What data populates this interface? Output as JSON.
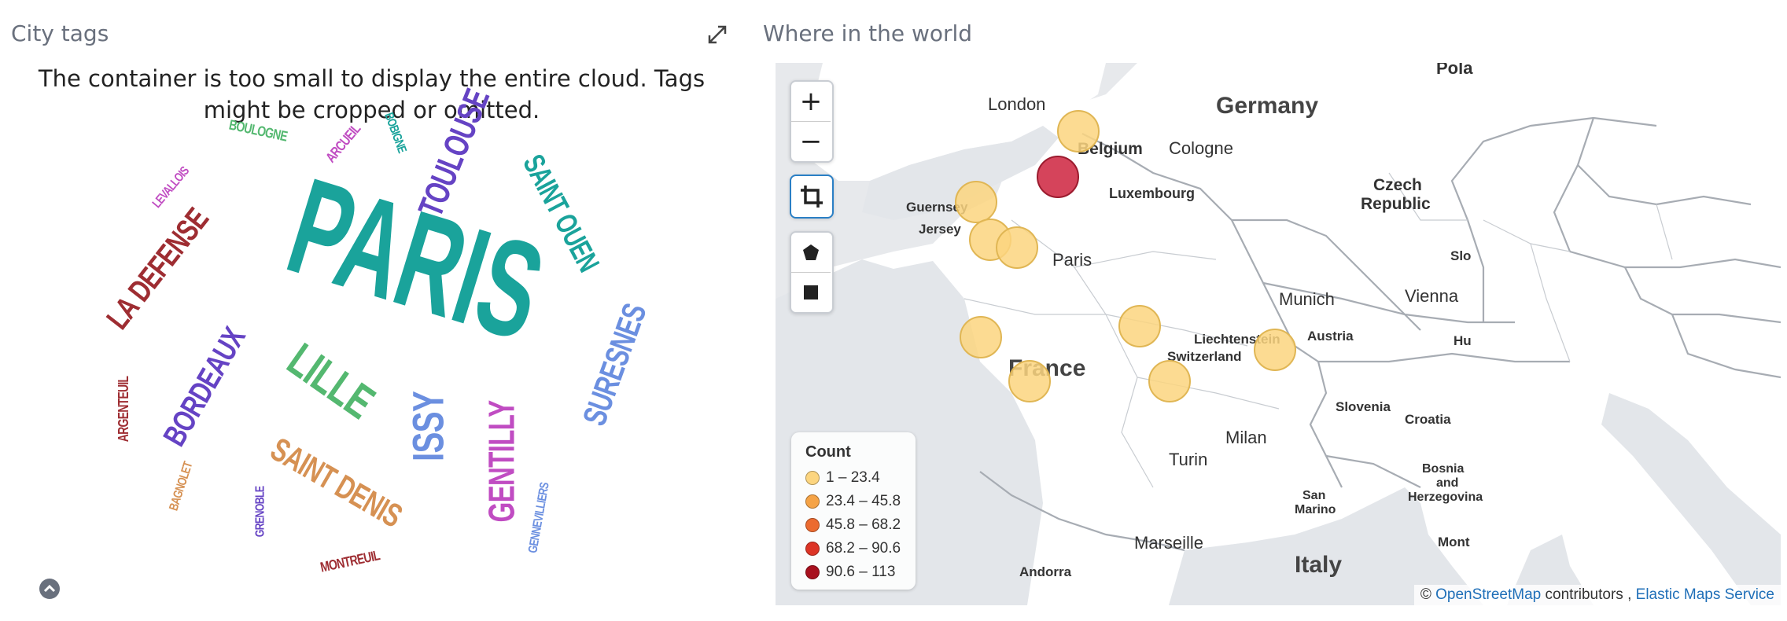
{
  "left_panel": {
    "title": "City tags",
    "warning": "The container is too small to display the entire cloud. Tags might be cropped or omitted.",
    "tags": [
      {
        "text": "PARIS",
        "color": "#1aa39b"
      },
      {
        "text": "LA DEFENSE",
        "color": "#9e2d32"
      },
      {
        "text": "TOULOUSE",
        "color": "#6543c4"
      },
      {
        "text": "SAINT OUEN",
        "color": "#1aa39b"
      },
      {
        "text": "SURESNES",
        "color": "#6b8fe0"
      },
      {
        "text": "BORDEAUX",
        "color": "#6543c4"
      },
      {
        "text": "LILLE",
        "color": "#54b870"
      },
      {
        "text": "ISSY",
        "color": "#6b8fe0"
      },
      {
        "text": "GENTILLY",
        "color": "#c04cc2"
      },
      {
        "text": "SAINT DENIS",
        "color": "#d69153"
      },
      {
        "text": "BOULOGNE",
        "color": "#54b870"
      },
      {
        "text": "ARCUEIL",
        "color": "#c04cc2"
      },
      {
        "text": "BOBIGNE",
        "color": "#1aa39b"
      },
      {
        "text": "LEVALLOIS",
        "color": "#c04cc2"
      },
      {
        "text": "ARGENTEUIL",
        "color": "#9e2d32"
      },
      {
        "text": "BAGNOLET",
        "color": "#d69153"
      },
      {
        "text": "GRENOBLE",
        "color": "#6543c4"
      },
      {
        "text": "MONTREUIL",
        "color": "#9e2d32"
      },
      {
        "text": "GENNEVILLIERS",
        "color": "#6b8fe0"
      }
    ]
  },
  "right_panel": {
    "title": "Where in the world",
    "controls": {
      "zoom_in": "+",
      "zoom_out": "−"
    },
    "map_labels": {
      "london": "London",
      "germany": "Germany",
      "belgium": "Belgium",
      "cologne": "Cologne",
      "luxembourg": "Luxembourg",
      "guernsey": "Guernsey",
      "jersey": "Jersey",
      "paris": "Paris",
      "czech1": "Czech",
      "czech2": "Republic",
      "munich": "Munich",
      "vienna": "Vienna",
      "liechtenstein": "Liechtenstein",
      "switzerland": "Switzerland",
      "austria": "Austria",
      "france": "France",
      "slovenia": "Slovenia",
      "croatia": "Croatia",
      "milan": "Milan",
      "turin": "Turin",
      "bosnia1": "Bosnia",
      "bosnia2": "and",
      "bosnia3": "Herzegovina",
      "san1": "San",
      "san2": "Marino",
      "marseille": "Marseille",
      "italy": "Italy",
      "andorra": "Andorra",
      "pol": "Pola",
      "slo": "Slo",
      "hu": "Hu",
      "mont": "Mont"
    },
    "legend": {
      "title": "Count",
      "items": [
        {
          "label": "1 – 23.4",
          "color": "#fcd57f"
        },
        {
          "label": "23.4 – 45.8",
          "color": "#f5a346"
        },
        {
          "label": "45.8 – 68.2",
          "color": "#ec6b30"
        },
        {
          "label": "68.2 – 90.6",
          "color": "#dd3426"
        },
        {
          "label": "90.6 – 113",
          "color": "#a8101e"
        }
      ]
    },
    "attribution": {
      "prefix": "©",
      "osm": "OpenStreetMap",
      "contributors": "contributors",
      "separator": ",",
      "ems": "Elastic Maps Service"
    }
  }
}
